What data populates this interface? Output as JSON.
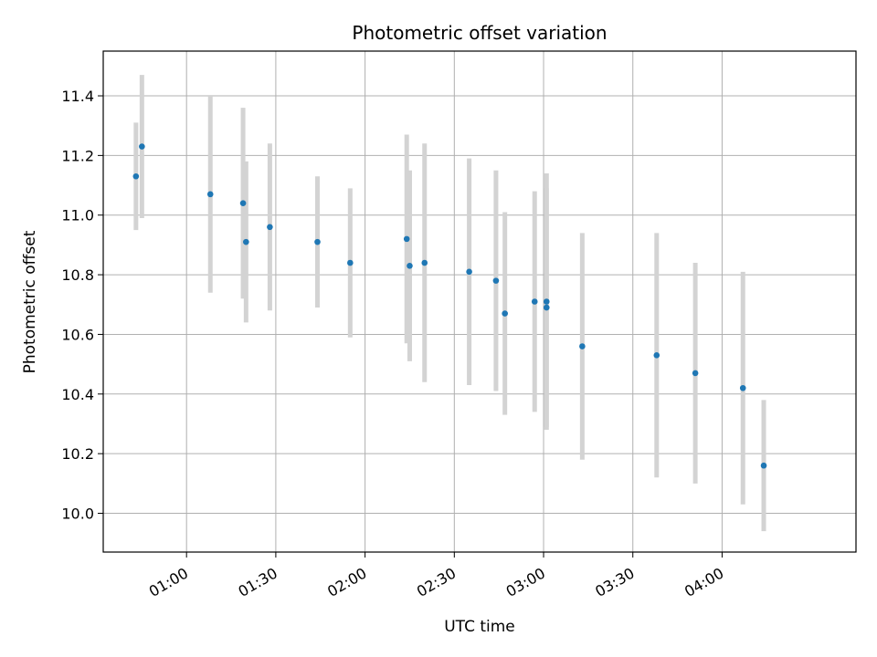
{
  "chart_data": {
    "type": "scatter",
    "title": "Photometric offset variation",
    "xlabel": "UTC time",
    "ylabel": "Photometric offset",
    "x_ticks": [
      "01:00",
      "01:30",
      "02:00",
      "02:30",
      "03:00",
      "03:30",
      "04:00"
    ],
    "y_ticks": [
      "10.0",
      "10.2",
      "10.4",
      "10.6",
      "10.8",
      "11.0",
      "11.2",
      "11.4"
    ],
    "xlim": [
      "00:32",
      "04:45"
    ],
    "ylim": [
      9.87,
      11.55
    ],
    "grid": true,
    "colors": {
      "point": "#1f77b4",
      "errorbar": "#d3d3d3",
      "grid": "#b0b0b0"
    },
    "points": [
      {
        "t": "00:43",
        "y": 11.13,
        "err": 0.18
      },
      {
        "t": "00:45",
        "y": 11.23,
        "err": 0.24
      },
      {
        "t": "01:08",
        "y": 11.07,
        "err": 0.33
      },
      {
        "t": "01:19",
        "y": 11.04,
        "err": 0.32
      },
      {
        "t": "01:20",
        "y": 10.91,
        "err": 0.27
      },
      {
        "t": "01:28",
        "y": 10.96,
        "err": 0.28
      },
      {
        "t": "01:44",
        "y": 10.91,
        "err": 0.22
      },
      {
        "t": "01:55",
        "y": 10.84,
        "err": 0.25
      },
      {
        "t": "02:14",
        "y": 10.92,
        "err": 0.35
      },
      {
        "t": "02:15",
        "y": 10.83,
        "err": 0.32
      },
      {
        "t": "02:20",
        "y": 10.84,
        "err": 0.4
      },
      {
        "t": "02:35",
        "y": 10.81,
        "err": 0.38
      },
      {
        "t": "02:44",
        "y": 10.78,
        "err": 0.37
      },
      {
        "t": "02:47",
        "y": 10.67,
        "err": 0.34
      },
      {
        "t": "02:57",
        "y": 10.71,
        "err": 0.37
      },
      {
        "t": "03:01",
        "y": 10.71,
        "err": 0.43
      },
      {
        "t": "03:01",
        "y": 10.69,
        "err": 0.4
      },
      {
        "t": "03:13",
        "y": 10.56,
        "err": 0.38
      },
      {
        "t": "03:38",
        "y": 10.53,
        "err": 0.41
      },
      {
        "t": "03:51",
        "y": 10.47,
        "err": 0.37
      },
      {
        "t": "04:07",
        "y": 10.42,
        "err": 0.39
      },
      {
        "t": "04:14",
        "y": 10.16,
        "err": 0.22
      }
    ]
  }
}
